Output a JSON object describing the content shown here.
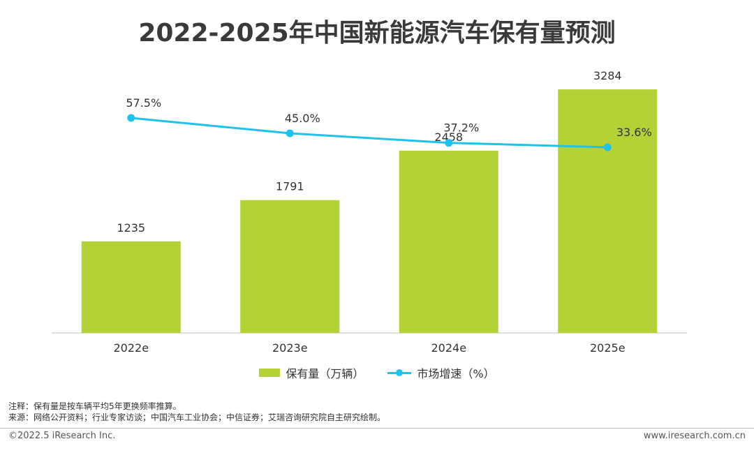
{
  "title": "2022-2025年中国新能源汽车保有量预测",
  "colors": {
    "bar": "#b2d235",
    "line": "#1fc2ec",
    "axis": "#bfbfbf"
  },
  "legend": {
    "bar_label": "保有量（万辆）",
    "line_label": "市场增速（%）"
  },
  "notes": {
    "note": "注释：保有量是按车辆平均5年更换频率推算。",
    "source": "来源：网络公开资料；行业专家访谈；中国汽车工业协会；中信证券；艾瑞咨询研究院自主研究绘制。"
  },
  "footer": {
    "copyright": "©2022.5 iResearch Inc.",
    "website": "www.iresearch.com.cn"
  },
  "chart_data": {
    "type": "bar",
    "categories": [
      "2022e",
      "2023e",
      "2024e",
      "2025e"
    ],
    "series": [
      {
        "name": "保有量（万辆）",
        "type": "bar",
        "values": [
          1235,
          1791,
          2458,
          3284
        ],
        "labels": [
          "1235",
          "1791",
          "2458",
          "3284"
        ]
      },
      {
        "name": "市场增速（%）",
        "type": "line",
        "values": [
          57.5,
          45.0,
          37.2,
          33.6
        ],
        "labels": [
          "57.5%",
          "45.0%",
          "37.2%",
          "33.6%"
        ]
      }
    ],
    "title": "2022-2025年中国新能源汽车保有量预测",
    "xlabel": "",
    "ylabel": "",
    "grid": false,
    "legend_position": "bottom"
  }
}
